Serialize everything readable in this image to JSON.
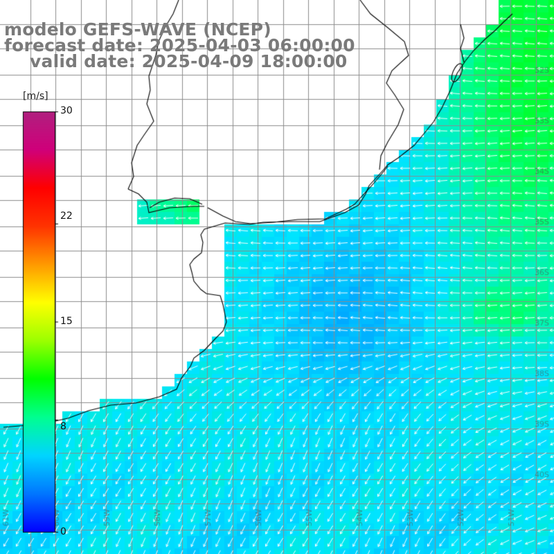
{
  "header": {
    "line1": "modelo GEFS-WAVE (NCEP)",
    "line2": "forecast date: 2025-04-03 06:00:00",
    "line3": "valid date: 2025-04-09 18:00:00"
  },
  "colorbar": {
    "unit": "[m/s]",
    "labels": [
      "30",
      "22",
      "15",
      "8",
      "0"
    ],
    "min": 0,
    "max": 30,
    "colors": [
      "#0000ff",
      "#0077ff",
      "#00d5ff",
      "#00ff90",
      "#00ff00",
      "#9cff00",
      "#ffff00",
      "#ff9900",
      "#ff3300",
      "#ff0000",
      "#d0007a",
      "#b0207f"
    ]
  },
  "grid": {
    "lat_labels": [
      "32S",
      "33S",
      "34S",
      "35S",
      "36S",
      "37S",
      "38S",
      "39S",
      "40S"
    ],
    "lon_labels": [
      "61W",
      "60W",
      "59W",
      "58W",
      "57W",
      "56W",
      "55W",
      "54W",
      "53W",
      "52W",
      "51W"
    ]
  },
  "colors": {
    "title": "#7a7a7a",
    "grid": "#8c8c8c",
    "coast": "#000000",
    "arrow": "#ffffff",
    "background": "#ffffff"
  }
}
